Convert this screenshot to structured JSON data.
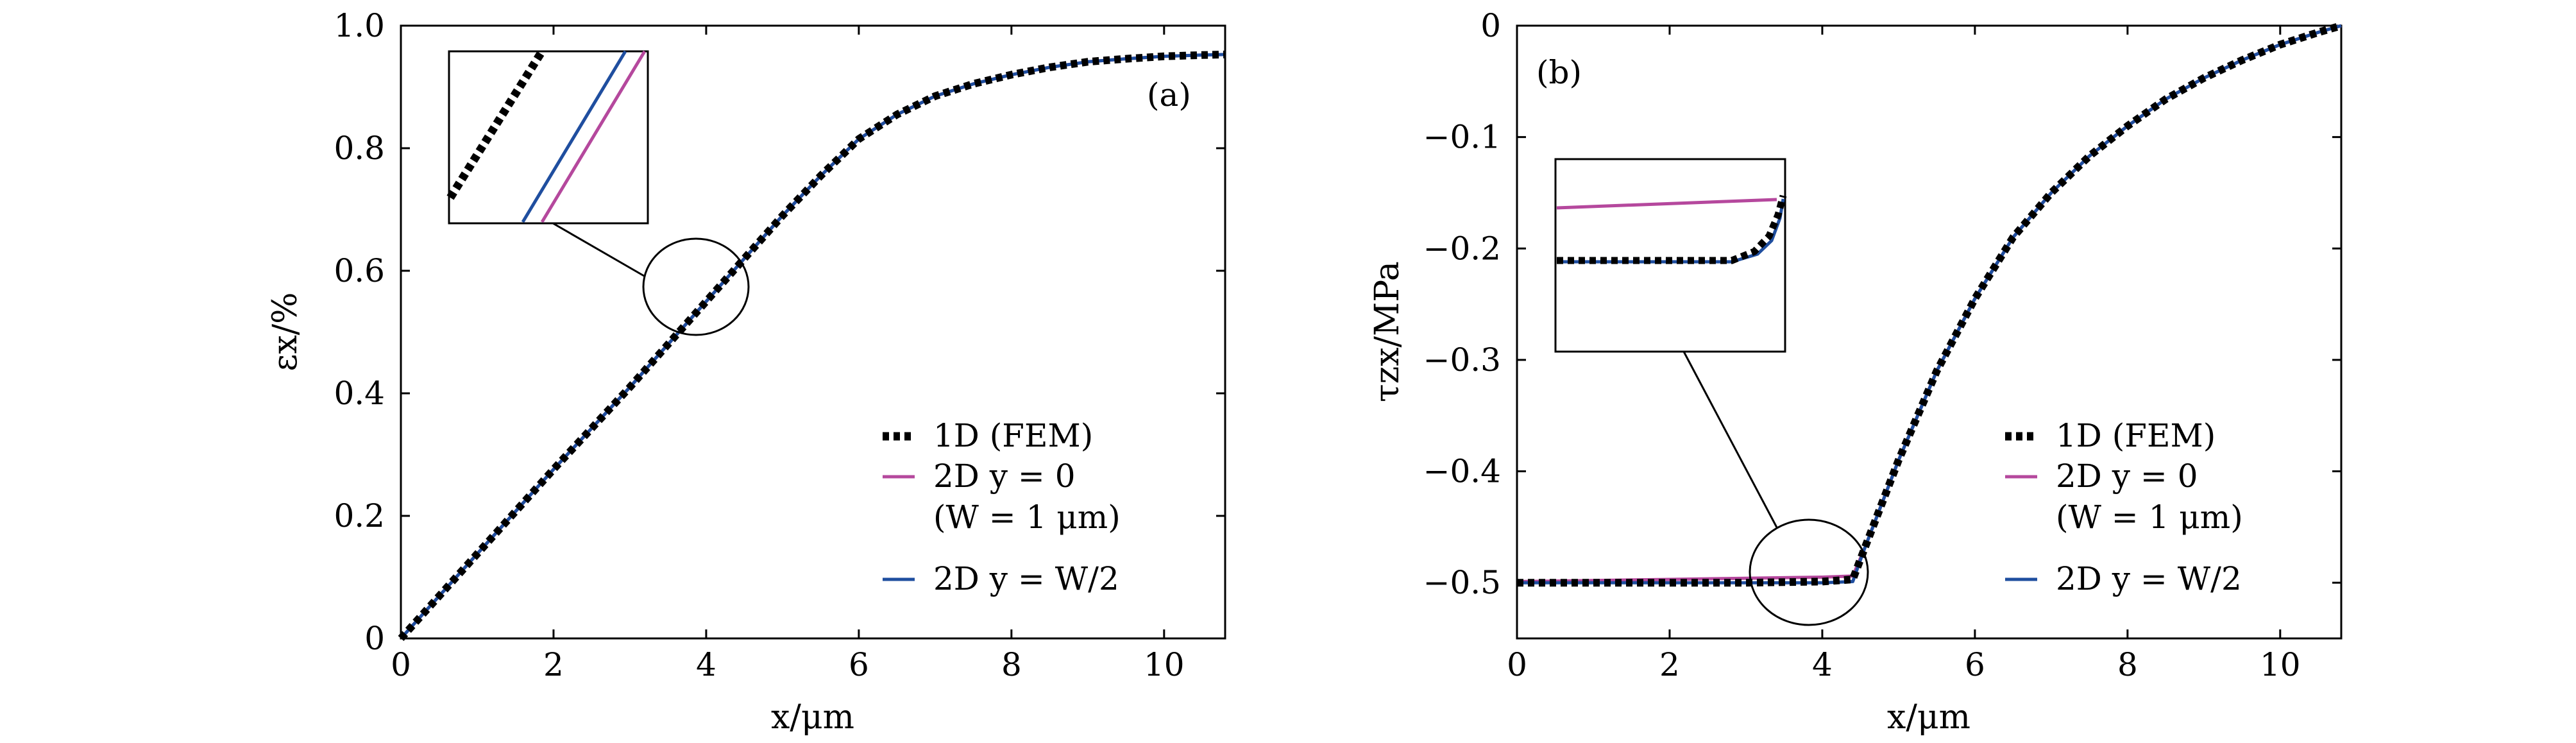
{
  "chart_data": [
    {
      "type": "line",
      "panel_label": "(a)",
      "xlabel": "x/μm",
      "ylabel": "εx/%",
      "xlim": [
        0,
        10.8
      ],
      "ylim": [
        0,
        1.0
      ],
      "x_ticks": [
        0,
        2,
        4,
        6,
        8,
        10
      ],
      "y_ticks": [
        0,
        0.2,
        0.4,
        0.6,
        0.8,
        1.0
      ],
      "x_tick_labels": [
        "0",
        "2",
        "4",
        "6",
        "8",
        "10"
      ],
      "y_tick_labels": [
        "0",
        "0.2",
        "0.4",
        "0.6",
        "0.8",
        "1.0"
      ],
      "legend_position": "lower-right",
      "legend": [
        {
          "label": "1D (FEM)",
          "style": "dotted",
          "color": "#000000"
        },
        {
          "label": "2D y = 0",
          "label2": "(W = 1 μm)",
          "style": "solid",
          "color": "#b5489d"
        },
        {
          "label": "2D y = W/2",
          "style": "solid",
          "color": "#1f4e9f"
        }
      ],
      "series": [
        {
          "name": "1D (FEM)",
          "color": "#000000",
          "x": [
            0,
            1,
            2,
            3,
            4,
            4.5,
            5,
            5.5,
            6,
            6.5,
            7,
            7.5,
            8,
            8.5,
            9,
            9.5,
            10,
            10.5,
            10.8
          ],
          "y": [
            0,
            0.138,
            0.276,
            0.41,
            0.55,
            0.62,
            0.69,
            0.755,
            0.815,
            0.855,
            0.885,
            0.905,
            0.92,
            0.932,
            0.941,
            0.946,
            0.95,
            0.952,
            0.953
          ]
        },
        {
          "name": "2D y = 0",
          "color": "#b5489d",
          "x": [
            0,
            1,
            2,
            3,
            4,
            4.5,
            5,
            5.5,
            6,
            6.5,
            7,
            7.5,
            8,
            8.5,
            9,
            9.5,
            10,
            10.5,
            10.8
          ],
          "y": [
            0,
            0.138,
            0.276,
            0.41,
            0.55,
            0.62,
            0.69,
            0.755,
            0.815,
            0.855,
            0.885,
            0.905,
            0.92,
            0.932,
            0.941,
            0.946,
            0.95,
            0.952,
            0.953
          ]
        },
        {
          "name": "2D y = W/2",
          "color": "#1f4e9f",
          "x": [
            0,
            1,
            2,
            3,
            4,
            4.5,
            5,
            5.5,
            6,
            6.5,
            7,
            7.5,
            8,
            8.5,
            9,
            9.5,
            10,
            10.5,
            10.8
          ],
          "y": [
            0,
            0.138,
            0.276,
            0.41,
            0.55,
            0.62,
            0.69,
            0.755,
            0.815,
            0.855,
            0.885,
            0.905,
            0.92,
            0.932,
            0.941,
            0.946,
            0.95,
            0.952,
            0.953
          ]
        }
      ],
      "annotation": {
        "type": "zoom-ellipse",
        "center": [
          3.9,
          0.57
        ]
      }
    },
    {
      "type": "line",
      "panel_label": "(b)",
      "xlabel": "x/μm",
      "ylabel": "τzx/MPa",
      "xlim": [
        0,
        10.8
      ],
      "ylim": [
        -0.55,
        0
      ],
      "x_ticks": [
        0,
        2,
        4,
        6,
        8,
        10
      ],
      "y_ticks": [
        0,
        -0.1,
        -0.2,
        -0.3,
        -0.4,
        -0.5
      ],
      "x_tick_labels": [
        "0",
        "2",
        "4",
        "6",
        "8",
        "10"
      ],
      "y_tick_labels": [
        "0",
        "−0.1",
        "−0.2",
        "−0.3",
        "−0.4",
        "−0.5"
      ],
      "legend_position": "lower-right",
      "legend": [
        {
          "label": "1D (FEM)",
          "style": "dotted",
          "color": "#000000"
        },
        {
          "label": "2D y = 0",
          "label2": "(W = 1 μm)",
          "style": "solid",
          "color": "#b5489d"
        },
        {
          "label": "2D y = W/2",
          "style": "solid",
          "color": "#1f4e9f"
        }
      ],
      "series": [
        {
          "name": "1D (FEM)",
          "color": "#000000",
          "x": [
            0,
            1,
            2,
            3,
            4,
            4.4,
            4.55,
            5,
            5.5,
            6,
            6.5,
            7,
            7.5,
            8,
            8.5,
            9,
            9.5,
            10,
            10.5,
            10.8
          ],
          "y": [
            -0.5,
            -0.5,
            -0.5,
            -0.5,
            -0.499,
            -0.497,
            -0.47,
            -0.39,
            -0.31,
            -0.245,
            -0.19,
            -0.15,
            -0.117,
            -0.09,
            -0.066,
            -0.047,
            -0.031,
            -0.017,
            -0.006,
            0
          ]
        },
        {
          "name": "2D y = 0",
          "color": "#b5489d",
          "x": [
            0,
            1,
            2,
            3,
            4,
            4.4,
            4.55,
            5,
            5.5,
            6,
            6.5,
            7,
            7.5,
            8,
            8.5,
            9,
            9.5,
            10,
            10.5,
            10.8
          ],
          "y": [
            -0.499,
            -0.498,
            -0.497,
            -0.496,
            -0.495,
            -0.494,
            -0.47,
            -0.39,
            -0.31,
            -0.245,
            -0.19,
            -0.15,
            -0.117,
            -0.09,
            -0.066,
            -0.047,
            -0.031,
            -0.017,
            -0.006,
            0
          ]
        },
        {
          "name": "2D y = W/2",
          "color": "#1f4e9f",
          "x": [
            0,
            1,
            2,
            3,
            4,
            4.4,
            4.55,
            5,
            5.5,
            6,
            6.5,
            7,
            7.5,
            8,
            8.5,
            9,
            9.5,
            10,
            10.5,
            10.8
          ],
          "y": [
            -0.5,
            -0.5,
            -0.5,
            -0.5,
            -0.5,
            -0.499,
            -0.47,
            -0.39,
            -0.31,
            -0.245,
            -0.19,
            -0.15,
            -0.117,
            -0.09,
            -0.066,
            -0.047,
            -0.031,
            -0.017,
            -0.006,
            0
          ]
        }
      ],
      "annotation": {
        "type": "zoom-ellipse",
        "center": [
          3.85,
          -0.487
        ]
      }
    }
  ]
}
